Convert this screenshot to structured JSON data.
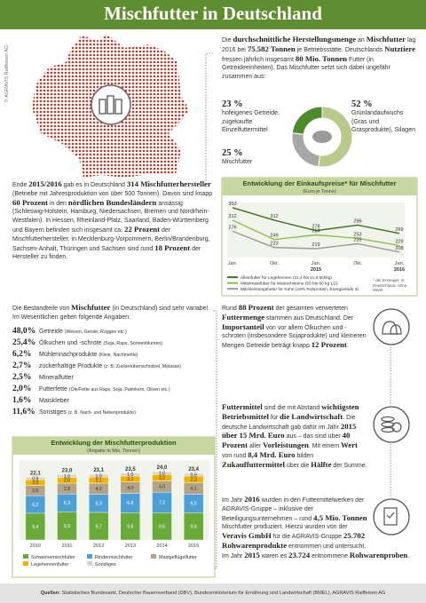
{
  "header": {
    "title": "Mischfutter in Deutschland",
    "copyright": "© AGRAVIS Raiffeisen AG"
  },
  "texts": {
    "production": [
      {
        "plain": "Die "
      },
      {
        "strong": "durchschnittliche Herstellungsmenge"
      },
      {
        "plain": " an "
      },
      {
        "strong": "Mischfutter"
      },
      {
        "plain": " lag 2016 bei "
      },
      {
        "strong": "75.582 Tonnen"
      },
      {
        "plain": " je Betriebsstätte. Deutschlands "
      },
      {
        "strong": "Nutztiere"
      },
      {
        "plain": " fressen jährlich insgesamt "
      },
      {
        "strong": "80 Mio. Tonnen"
      },
      {
        "plain": " Futter (in Getreideeinheiten). Das Mischfutter setzt sich dabei ungefähr zusammen aus:"
      }
    ],
    "manufacturers": [
      {
        "plain": "Ende "
      },
      {
        "strong": "2015/2016"
      },
      {
        "plain": " gab es in Deutschland "
      },
      {
        "strong": "314 Mischfutterhersteller"
      },
      {
        "plain": " (Betriebe mit Jahresproduktion von über 500 Tonnen). Davon sind knapp "
      },
      {
        "strong": "60 Prozent"
      },
      {
        "plain": " in den "
      },
      {
        "strong": "nördlichen Bundesländern"
      },
      {
        "plain": " ansässig (Schleswig-Holstein, Hamburg, Niedersachsen, Bremen und Nordrhein-Westfalen). In Hessen, Rheinland-Pfalz, Saarland, Baden-Württemberg und Bayern befinden sich insgesamt ca. "
      },
      {
        "strong": "22 Prozent"
      },
      {
        "plain": " der Mischfutterhersteller, in Mecklenburg-Vorpommern, Berlin/Brandenburg, Sachsen-Anhalt, Thüringen und Sachsen sind rund "
      },
      {
        "strong": "18 Prozent"
      },
      {
        "plain": " der Hersteller zu finden."
      }
    ],
    "components_intro": [
      {
        "plain": "Die Bestandteile von "
      },
      {
        "strong": "Mischfutter"
      },
      {
        "plain": " (in Deutschland) sind sehr variabel. Im Wesentlichen gelten folgende Angaben:"
      }
    ],
    "origin": [
      {
        "plain": "Rund "
      },
      {
        "strong": "88 Prozent"
      },
      {
        "plain": " der gesamten verwerteten "
      },
      {
        "strong": "Futtermenge"
      },
      {
        "plain": " stammen aus Deutschland. Der "
      },
      {
        "strong": "Importanteil"
      },
      {
        "plain": " von vor allem Ölkuchen und -schroten (insbesondere Sojaprodukte) und kleineren Mengen Getreide beträgt knapp "
      },
      {
        "strong": "12 Prozent"
      },
      {
        "plain": "."
      }
    ],
    "costs": [
      {
        "strong": "Futtermittel"
      },
      {
        "plain": " sind die mit Abstand "
      },
      {
        "strong": "wichtigsten Betriebsmittel"
      },
      {
        "plain": " für "
      },
      {
        "strong": "die Landwirtschaft"
      },
      {
        "plain": ". Die deutsche Landwirtschaft gab dafür im Jahr "
      },
      {
        "strong": "2015"
      },
      {
        "plain": " "
      },
      {
        "strong": "über 15 Mrd. Euro"
      },
      {
        "plain": " aus – das sind über "
      },
      {
        "strong": "40 Prozent"
      },
      {
        "plain": " aller "
      },
      {
        "strong": "Vorleistungen"
      },
      {
        "plain": ". Mit einem "
      },
      {
        "strong": "Wert"
      },
      {
        "plain": " von rund "
      },
      {
        "strong": "8,4 Mrd. Euro"
      },
      {
        "plain": " bilden "
      },
      {
        "strong": "Zukauffuttermittel"
      },
      {
        "plain": " über die "
      },
      {
        "strong": "Hälfte"
      },
      {
        "plain": " der Summe."
      }
    ],
    "agravis": [
      {
        "plain": "Im Jahr "
      },
      {
        "strong": "2016"
      },
      {
        "plain": " wurden in den Futtermittelwerken der AGRAVIS-Gruppe – inklusive der Beteiligungsunternehmen – rund "
      },
      {
        "strong": "4,5 Mio. Tonnen"
      },
      {
        "plain": " Mischfutter produziert. Hierzu wurden von der "
      },
      {
        "strong": "Veravis GmbH"
      },
      {
        "plain": " für die AGRAVIS-Gruppe "
      },
      {
        "strong": "25.702 Rohwarenprodukte"
      },
      {
        "plain": " entnommen und untersucht. Im Jahr "
      },
      {
        "strong": "2015"
      },
      {
        "plain": " waren es "
      },
      {
        "strong": "23.724"
      },
      {
        "plain": " entnommene "
      },
      {
        "strong": "Rohwarenproben"
      },
      {
        "plain": "."
      }
    ]
  },
  "ingredients": [
    {
      "share": "48,0%",
      "name": "Getreide",
      "detail": "(Weizen, Gerste, Roggen etc.)"
    },
    {
      "share": "25,4%",
      "name": "Ölkuchen und -schrote",
      "detail": "(Soja, Raps, Sonnenblumen)"
    },
    {
      "share": "6,2%",
      "name": "Mühlennachprodukte",
      "detail": "(Kleie, Nachmehle)"
    },
    {
      "share": "2,7%",
      "name": "zuckerhaltige Produkte",
      "detail": "(z. B. Zuckerrübenschnitzel, Melasse)"
    },
    {
      "share": "2,5%",
      "name": "Mineralfutter",
      "detail": ""
    },
    {
      "share": "2,0%",
      "name": "Futterfette",
      "detail": "(Öle/Fette aus Raps, Soja, Palmkern, Oliven etc.)"
    },
    {
      "share": "1,6%",
      "name": "Maiskleber",
      "detail": ""
    },
    {
      "share": "11,6%",
      "name": "Sonstiges",
      "detail": "(z. B. Nach- und Nebenprodukte)"
    }
  ],
  "chart_data": [
    {
      "type": "pie",
      "categories": [
        "hofeigenes Getreide, zugekaufte Einzelfuttermittel",
        "Grünlandaufwuchs (Gras und Grasprodukte), Silagen",
        "Mischfutter"
      ],
      "values": [
        23,
        52,
        25
      ],
      "value_labels": [
        "23 %",
        "52 %",
        "25 %"
      ],
      "colors": [
        "#4f8a2c",
        "#b9c98c",
        "#a7a7a7"
      ]
    },
    {
      "type": "line",
      "title": "Entwicklung der Einkaufspreise* für Mischfutter",
      "subtitle": "(Euro je Tonne)",
      "categories": [
        "Jan.",
        "Okt.",
        "Jan.",
        "Okt.",
        "Jan."
      ],
      "year_labels": [
        "2015",
        "2016"
      ],
      "ylim": [
        190,
        370
      ],
      "series": [
        {
          "name": "Alleinfutter für Legehennen (11,4 bis 11,6 MJ/kg)",
          "color": "#3d6f27",
          "values": [
            353,
            312,
            278,
            296,
            269
          ]
        },
        {
          "name": "Mittelmastfutter für Mastschweine (50 bis 60 kg LG)",
          "color": "#8cc04b",
          "values": [
            312,
            249,
            264,
            253,
            229
          ]
        },
        {
          "name": "Milchleistungsfutter für Kühe (18% Rohprotein, Energiestufe 3)",
          "color": "#9a9a9a",
          "values": [
            276,
            223,
            219,
            235,
            208
          ]
        }
      ],
      "note": "* der Erzeuger, in Deutschland, ohne MwSt."
    },
    {
      "type": "bar",
      "stacked": true,
      "title": "Entwicklung der Mischfutterproduktion",
      "subtitle": "(Angabe in Mio. Tonnen)",
      "categories": [
        "2010",
        "2011",
        "2012",
        "2013",
        "2014",
        "2015"
      ],
      "ylim": [
        0,
        25
      ],
      "series": [
        {
          "name": "Schweinemischfutter",
          "color": "#6aaa3a",
          "values": [
            9.4,
            9.9,
            9.7,
            9.6,
            9.6,
            9.6
          ],
          "value_labels": [
            "9,4",
            "9,9",
            "9,7",
            "9,6",
            "9,6",
            "9,6"
          ]
        },
        {
          "name": "Rindermischfutter",
          "color": "#4e9fd6",
          "values": [
            6.2,
            6.3,
            6.3,
            6.8,
            7.2,
            6.5
          ],
          "value_labels": [
            "6,2",
            "6,3",
            "6,3",
            "6,8",
            "7,2",
            "6,5"
          ]
        },
        {
          "name": "Mastgeflügelfutter",
          "color": "#b3a489",
          "values": [
            3.6,
            3.8,
            4.0,
            4.0,
            4.0,
            4.1
          ],
          "value_labels": [
            "3,6",
            "3,8",
            "4,0",
            "4,0",
            "4,0",
            "4,1"
          ]
        },
        {
          "name": "Legehennenfutter",
          "color": "#f0b400",
          "values": [
            2.0,
            2.0,
            2.1,
            2.1,
            2.2,
            2.3
          ],
          "value_labels": [
            "2,0",
            "2,0",
            "2,1",
            "2,1",
            "2,2",
            "2,3"
          ]
        },
        {
          "name": "Sonstiges",
          "color": "#d5d5d5",
          "values": [
            0.9,
            1.0,
            1.0,
            1.0,
            1.0,
            0.9
          ],
          "value_labels": [
            "0,9",
            "1,0",
            "1,0",
            "1,0",
            "1,0",
            "0,9"
          ]
        }
      ],
      "totals": {
        "values": [
          22.1,
          23.0,
          23.1,
          23.5,
          24.0,
          23.4
        ],
        "value_labels": [
          "22,1",
          "23,0",
          "23,1",
          "23,5",
          "24,0",
          "23,4"
        ]
      }
    }
  ],
  "footer": {
    "label": "Quellen:",
    "text": "Statistisches Bundesamt, Deutscher Bauernverband (DBV), Bundesministerium für Ernährung und Landwirtschaft (BMEL), AGRAVIS Raiffeisen AG"
  }
}
